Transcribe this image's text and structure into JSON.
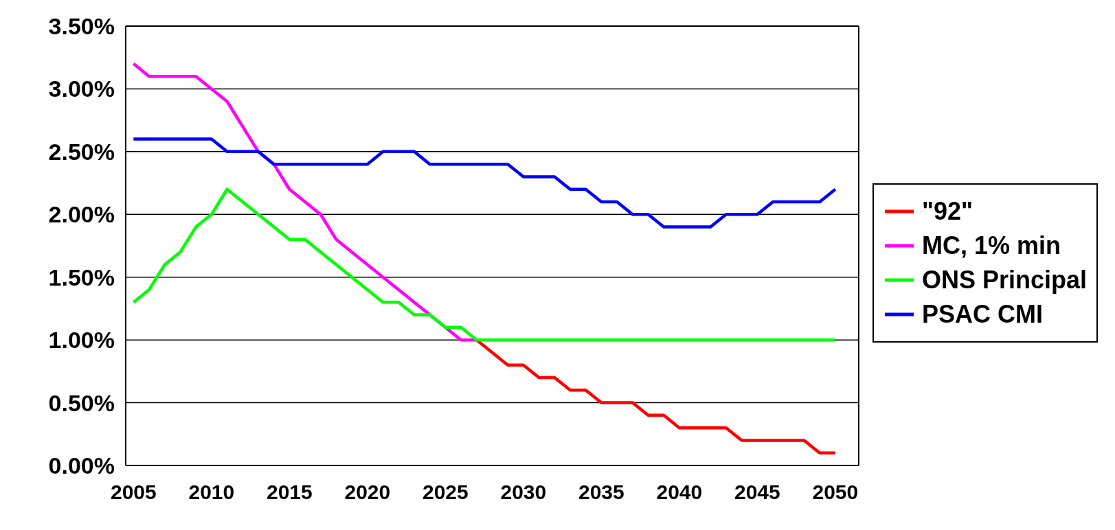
{
  "chart_data": {
    "type": "line",
    "x": [
      2005,
      2006,
      2007,
      2008,
      2009,
      2010,
      2011,
      2012,
      2013,
      2014,
      2015,
      2016,
      2017,
      2018,
      2019,
      2020,
      2021,
      2022,
      2023,
      2024,
      2025,
      2026,
      2027,
      2028,
      2029,
      2030,
      2031,
      2032,
      2033,
      2034,
      2035,
      2036,
      2037,
      2038,
      2039,
      2040,
      2041,
      2042,
      2043,
      2044,
      2045,
      2046,
      2047,
      2048,
      2049,
      2050
    ],
    "series": [
      {
        "name": "\"92\"",
        "color": "#ff0000",
        "values": [
          null,
          null,
          null,
          null,
          null,
          null,
          null,
          null,
          null,
          null,
          null,
          null,
          null,
          null,
          null,
          null,
          null,
          null,
          null,
          null,
          null,
          null,
          1.0,
          0.9,
          0.8,
          0.8,
          0.7,
          0.7,
          0.6,
          0.6,
          0.5,
          0.5,
          0.5,
          0.4,
          0.4,
          0.3,
          0.3,
          0.3,
          0.3,
          0.2,
          0.2,
          0.2,
          0.2,
          0.2,
          0.1,
          0.1
        ]
      },
      {
        "name": "MC, 1% min",
        "color": "#ff00ff",
        "values": [
          3.2,
          3.1,
          3.1,
          3.1,
          3.1,
          3.0,
          2.9,
          2.7,
          2.5,
          2.4,
          2.2,
          2.1,
          2.0,
          1.8,
          1.7,
          1.6,
          1.5,
          1.4,
          1.3,
          1.2,
          1.1,
          1.0,
          1.0,
          null,
          null,
          null,
          null,
          null,
          null,
          null,
          null,
          null,
          null,
          null,
          null,
          null,
          null,
          null,
          null,
          null,
          null,
          null,
          null,
          null,
          null,
          null
        ]
      },
      {
        "name": "ONS Principal",
        "color": "#00ff00",
        "values": [
          1.3,
          1.4,
          1.6,
          1.7,
          1.9,
          2.0,
          2.2,
          2.1,
          2.0,
          1.9,
          1.8,
          1.8,
          1.7,
          1.6,
          1.5,
          1.4,
          1.3,
          1.3,
          1.2,
          1.2,
          1.1,
          1.1,
          1.0,
          1.0,
          1.0,
          1.0,
          1.0,
          1.0,
          1.0,
          1.0,
          1.0,
          1.0,
          1.0,
          1.0,
          1.0,
          1.0,
          1.0,
          1.0,
          1.0,
          1.0,
          1.0,
          1.0,
          1.0,
          1.0,
          1.0,
          1.0
        ]
      },
      {
        "name": "PSAC CMI",
        "color": "#0000ff",
        "values": [
          2.6,
          2.6,
          2.6,
          2.6,
          2.6,
          2.6,
          2.5,
          2.5,
          2.5,
          2.4,
          2.4,
          2.4,
          2.4,
          2.4,
          2.4,
          2.4,
          2.5,
          2.5,
          2.5,
          2.4,
          2.4,
          2.4,
          2.4,
          2.4,
          2.4,
          2.3,
          2.3,
          2.3,
          2.2,
          2.2,
          2.1,
          2.1,
          2.0,
          2.0,
          1.9,
          1.9,
          1.9,
          1.9,
          2.0,
          2.0,
          2.0,
          2.1,
          2.1,
          2.1,
          2.1,
          2.2
        ]
      }
    ],
    "xlim": [
      2004.5,
      2051.5
    ],
    "xticks": [
      2005,
      2010,
      2015,
      2020,
      2025,
      2030,
      2035,
      2040,
      2045,
      2050
    ],
    "ylim": [
      0,
      3.5
    ],
    "yticks": [
      {
        "value": 0,
        "label": "0.00%"
      },
      {
        "value": 0.5,
        "label": "0.50%"
      },
      {
        "value": 1,
        "label": "1.00%"
      },
      {
        "value": 1.5,
        "label": "1.50%"
      },
      {
        "value": 2,
        "label": "2.00%"
      },
      {
        "value": 2.5,
        "label": "2.50%"
      },
      {
        "value": 3,
        "label": "3.00%"
      },
      {
        "value": 3.5,
        "label": "3.50%"
      }
    ],
    "grid": "y",
    "legend": "right",
    "marker": "none",
    "line_style": "solid"
  }
}
